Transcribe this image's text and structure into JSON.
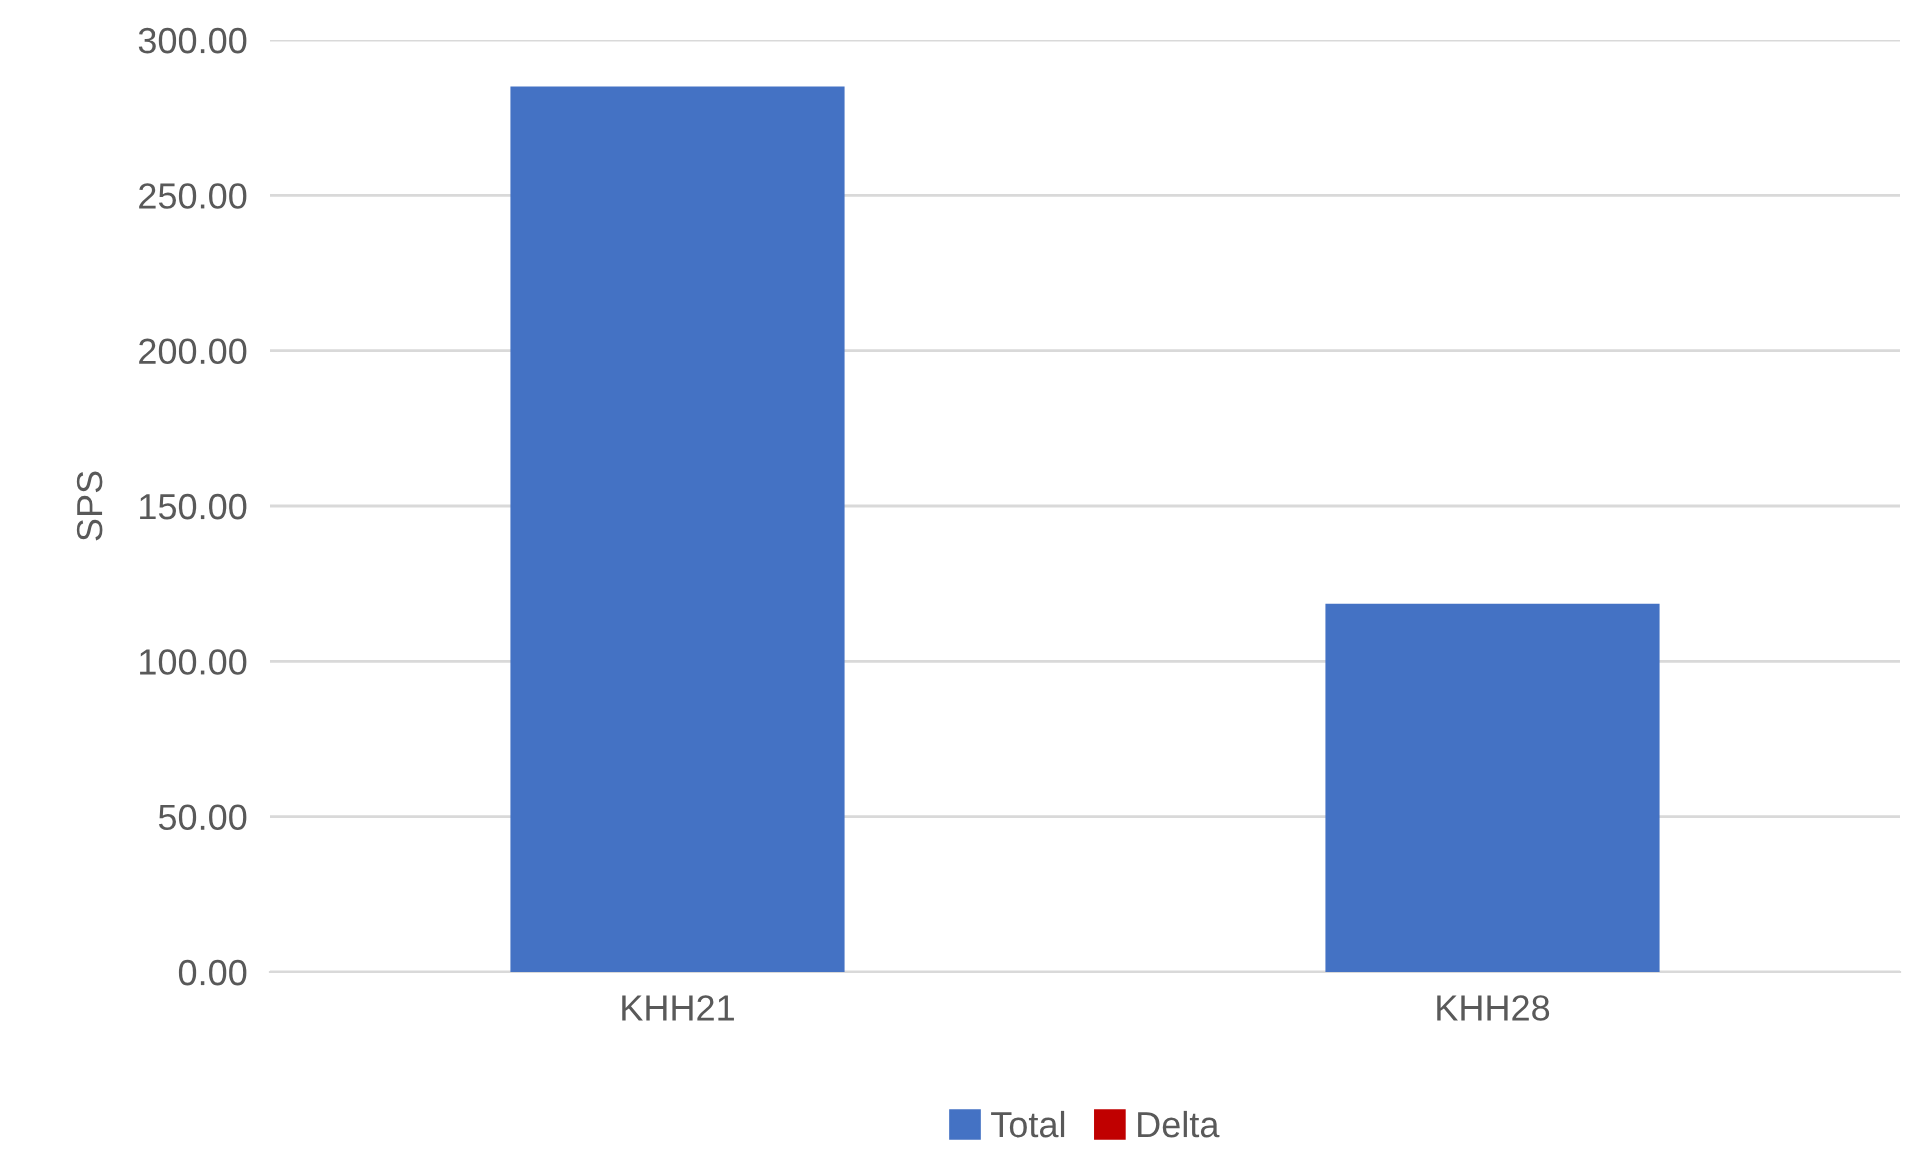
{
  "chart_data": {
    "type": "bar",
    "ylabel": "SPS",
    "categories": [
      "KHH21",
      "KHH28"
    ],
    "series": [
      {
        "name": "Total",
        "color": "#4472c4",
        "values": [
          285,
          118.5
        ]
      },
      {
        "name": "Delta",
        "color": "#c00000",
        "values": [
          0,
          0
        ]
      }
    ],
    "ylim": [
      0,
      300
    ],
    "yticks": [
      {
        "value": 0,
        "label": "0.00"
      },
      {
        "value": 50,
        "label": "50.00"
      },
      {
        "value": 100,
        "label": "100.00"
      },
      {
        "value": 150,
        "label": "150.00"
      },
      {
        "value": 200,
        "label": "200.00"
      },
      {
        "value": 250,
        "label": "250.00"
      },
      {
        "value": 300,
        "label": "300.00"
      }
    ],
    "grid": "y",
    "legend": "bottom"
  }
}
